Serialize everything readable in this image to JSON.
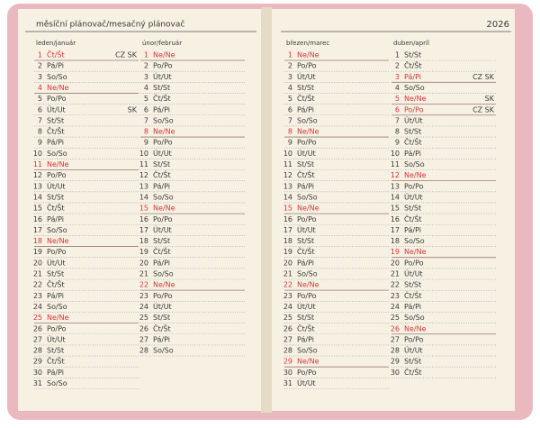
{
  "header": {
    "title": "měsíční plánovač/mesačný plánovač",
    "year": "2026"
  },
  "months": [
    {
      "name": "leden/január",
      "red": [
        0,
        3,
        10,
        17,
        24
      ],
      "days": [
        [
          1,
          "Čt/Št",
          "CZ SK"
        ],
        [
          2,
          "Pá/Pi"
        ],
        [
          3,
          "So/So"
        ],
        [
          4,
          "Ne/Ne"
        ],
        [
          5,
          "Po/Po"
        ],
        [
          6,
          "Út/Ut",
          "SK"
        ],
        [
          7,
          "St/St"
        ],
        [
          8,
          "Čt/Št"
        ],
        [
          9,
          "Pá/Pi"
        ],
        [
          10,
          "So/So"
        ],
        [
          11,
          "Ne/Ne"
        ],
        [
          12,
          "Po/Po"
        ],
        [
          13,
          "Út/Ut"
        ],
        [
          14,
          "St/St"
        ],
        [
          15,
          "Čt/Št"
        ],
        [
          16,
          "Pá/Pi"
        ],
        [
          17,
          "So/So"
        ],
        [
          18,
          "Ne/Ne"
        ],
        [
          19,
          "Po/Po"
        ],
        [
          20,
          "Út/Ut"
        ],
        [
          21,
          "St/St"
        ],
        [
          22,
          "Čt/Št"
        ],
        [
          23,
          "Pá/Pi"
        ],
        [
          24,
          "So/So"
        ],
        [
          25,
          "Ne/Ne"
        ],
        [
          26,
          "Po/Po"
        ],
        [
          27,
          "Út/Ut"
        ],
        [
          28,
          "St/St"
        ],
        [
          29,
          "Čt/Št"
        ],
        [
          30,
          "Pá/Pi"
        ],
        [
          31,
          "So/So"
        ]
      ]
    },
    {
      "name": "únor/február",
      "red": [
        0,
        7,
        14,
        21
      ],
      "days": [
        [
          1,
          "Ne/Ne"
        ],
        [
          2,
          "Po/Po"
        ],
        [
          3,
          "Út/Ut"
        ],
        [
          4,
          "St/St"
        ],
        [
          5,
          "Čt/Št"
        ],
        [
          6,
          "Pá/Pi"
        ],
        [
          7,
          "So/So"
        ],
        [
          8,
          "Ne/Ne"
        ],
        [
          9,
          "Po/Po"
        ],
        [
          10,
          "Út/Ut"
        ],
        [
          11,
          "St/St"
        ],
        [
          12,
          "Čt/Št"
        ],
        [
          13,
          "Pá/Pi"
        ],
        [
          14,
          "So/So"
        ],
        [
          15,
          "Ne/Ne"
        ],
        [
          16,
          "Po/Po"
        ],
        [
          17,
          "Út/Ut"
        ],
        [
          18,
          "St/St"
        ],
        [
          19,
          "Čt/Št"
        ],
        [
          20,
          "Pá/Pi"
        ],
        [
          21,
          "So/So"
        ],
        [
          22,
          "Ne/Ne"
        ],
        [
          23,
          "Po/Po"
        ],
        [
          24,
          "Út/Ut"
        ],
        [
          25,
          "St/St"
        ],
        [
          26,
          "Čt/Št"
        ],
        [
          27,
          "Pá/Pi"
        ],
        [
          28,
          "So/So"
        ]
      ]
    },
    {
      "name": "březen/marec",
      "red": [
        0,
        7,
        14,
        21,
        28
      ],
      "days": [
        [
          1,
          "Ne/Ne"
        ],
        [
          2,
          "Po/Po"
        ],
        [
          3,
          "Út/Ut"
        ],
        [
          4,
          "St/St"
        ],
        [
          5,
          "Čt/Št"
        ],
        [
          6,
          "Pá/Pi"
        ],
        [
          7,
          "So/So"
        ],
        [
          8,
          "Ne/Ne"
        ],
        [
          9,
          "Po/Po"
        ],
        [
          10,
          "Út/Ut"
        ],
        [
          11,
          "St/St"
        ],
        [
          12,
          "Čt/Št"
        ],
        [
          13,
          "Pá/Pi"
        ],
        [
          14,
          "So/So"
        ],
        [
          15,
          "Ne/Ne"
        ],
        [
          16,
          "Po/Po"
        ],
        [
          17,
          "Út/Ut"
        ],
        [
          18,
          "St/St"
        ],
        [
          19,
          "Čt/Št"
        ],
        [
          20,
          "Pá/Pi"
        ],
        [
          21,
          "So/So"
        ],
        [
          22,
          "Ne/Ne"
        ],
        [
          23,
          "Po/Po"
        ],
        [
          24,
          "Út/Ut"
        ],
        [
          25,
          "St/St"
        ],
        [
          26,
          "Čt/Št"
        ],
        [
          27,
          "Pá/Pi"
        ],
        [
          28,
          "So/So"
        ],
        [
          29,
          "Ne/Ne"
        ],
        [
          30,
          "Po/Po"
        ],
        [
          31,
          "Út/Ut"
        ]
      ]
    },
    {
      "name": "duben/apríl",
      "red": [
        2,
        4,
        5,
        11,
        18,
        25
      ],
      "days": [
        [
          1,
          "St/St"
        ],
        [
          2,
          "Čt/Št"
        ],
        [
          3,
          "Pá/Pi",
          "CZ SK"
        ],
        [
          4,
          "So/So"
        ],
        [
          5,
          "Ne/Ne",
          "SK"
        ],
        [
          6,
          "Po/Po",
          "CZ SK"
        ],
        [
          7,
          "Út/Ut"
        ],
        [
          8,
          "St/St"
        ],
        [
          9,
          "Čt/Št"
        ],
        [
          10,
          "Pá/Pi"
        ],
        [
          11,
          "So/So"
        ],
        [
          12,
          "Ne/Ne"
        ],
        [
          13,
          "Po/Po"
        ],
        [
          14,
          "Út/Ut"
        ],
        [
          15,
          "St/St"
        ],
        [
          16,
          "Čt/Št"
        ],
        [
          17,
          "Pá/Pi"
        ],
        [
          18,
          "So/So"
        ],
        [
          19,
          "Ne/Ne"
        ],
        [
          20,
          "Po/Po"
        ],
        [
          21,
          "Út/Ut"
        ],
        [
          22,
          "St/St"
        ],
        [
          23,
          "Čt/Št"
        ],
        [
          24,
          "Pá/Pi"
        ],
        [
          25,
          "So/So"
        ],
        [
          26,
          "Ne/Ne"
        ],
        [
          27,
          "Po/Po"
        ],
        [
          28,
          "Út/Ut"
        ],
        [
          29,
          "St/St"
        ],
        [
          30,
          "Čt/Št"
        ]
      ]
    }
  ]
}
